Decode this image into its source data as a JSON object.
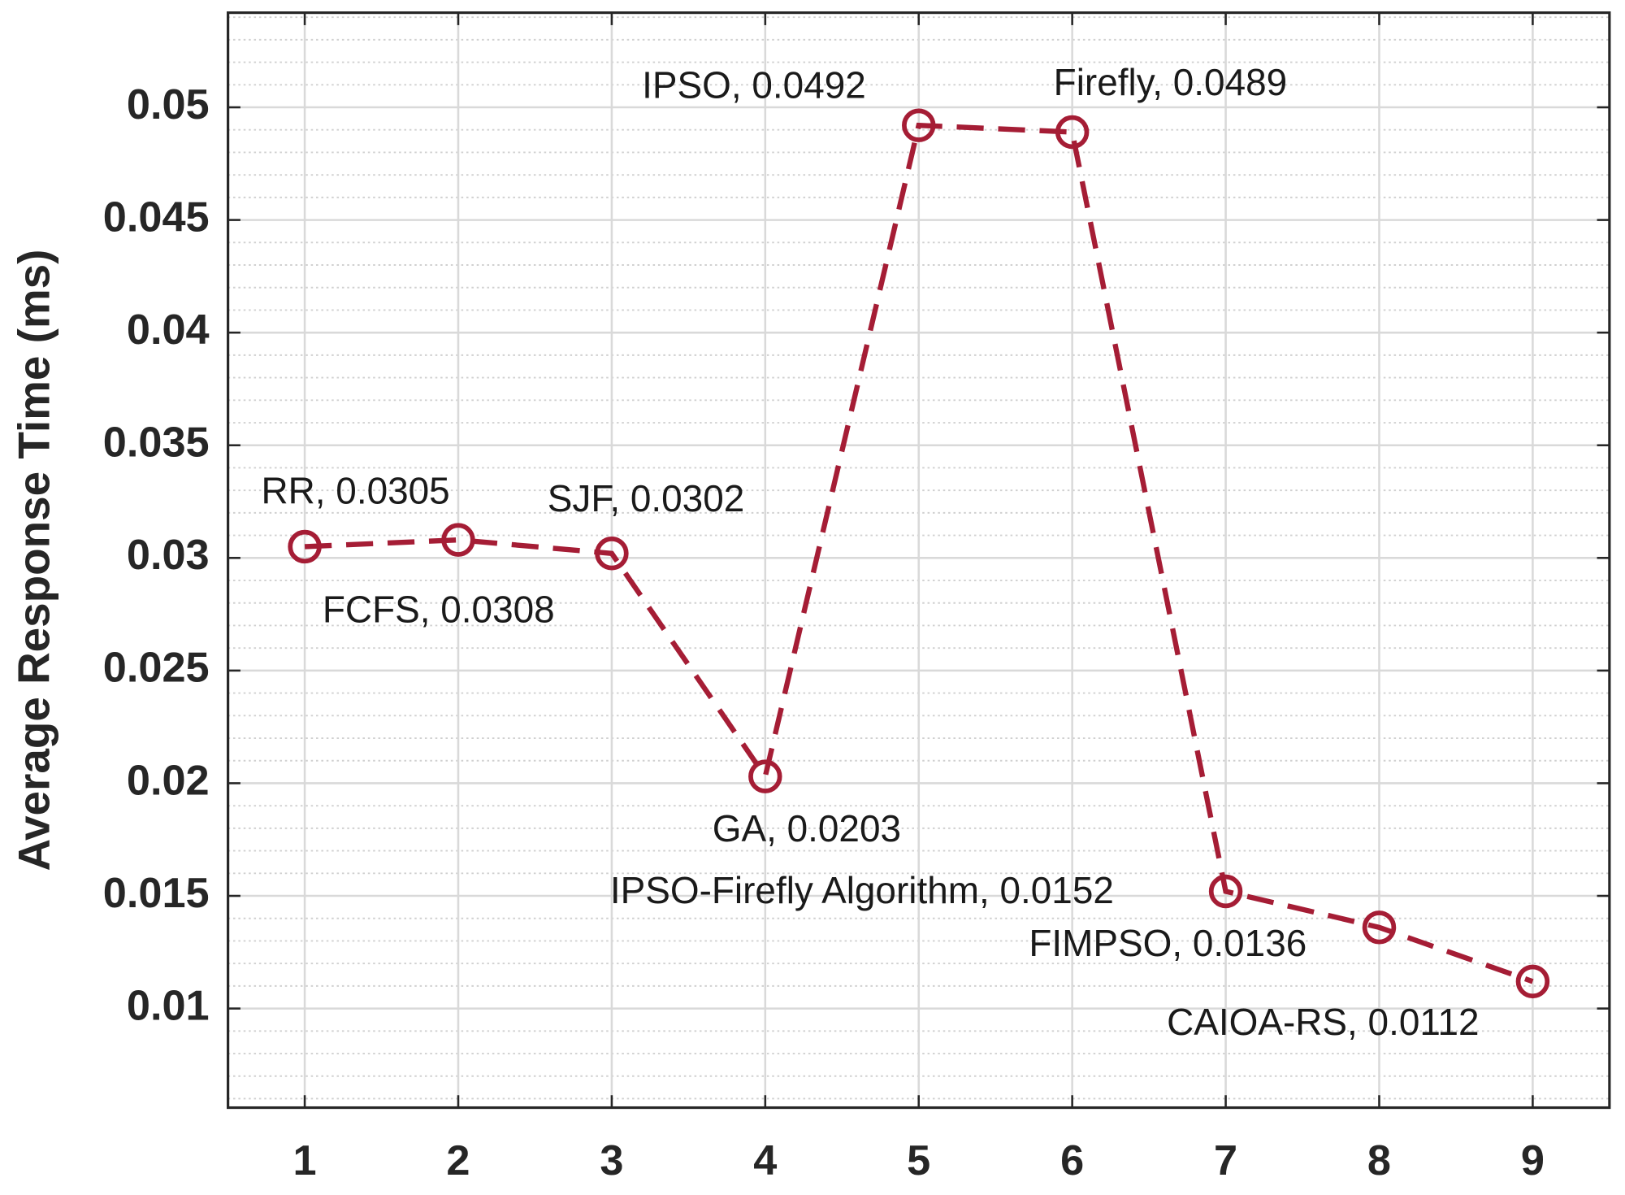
{
  "chart_data": {
    "type": "line",
    "y_label": "Average Response Time (ms)",
    "x": [
      1,
      2,
      3,
      4,
      5,
      6,
      7,
      8,
      9
    ],
    "values": [
      0.0305,
      0.0308,
      0.0302,
      0.0203,
      0.0492,
      0.0489,
      0.0152,
      0.0136,
      0.0112
    ],
    "value_labels": [
      "RR, 0.0305",
      "FCFS, 0.0308",
      "SJF, 0.0302",
      "GA, 0.0203",
      "IPSO, 0.0492",
      "Firefly, 0.0489",
      "IPSO-Firefly Algorithm, 0.0152",
      "FIMPSO, 0.0136",
      "CAIOA-RS, 0.0112"
    ],
    "color": "#a51d35",
    "line_style": "dashed",
    "marker": "circle",
    "xlim": [
      0.5,
      9.5
    ],
    "xticks": [
      1,
      2,
      3,
      4,
      5,
      6,
      7,
      8,
      9
    ],
    "ylim": [
      0.0056,
      0.0542
    ],
    "yticks": [
      0.01,
      0.015,
      0.02,
      0.025,
      0.03,
      0.035,
      0.04,
      0.045,
      0.05
    ],
    "grid": true,
    "minor_grid": true
  }
}
